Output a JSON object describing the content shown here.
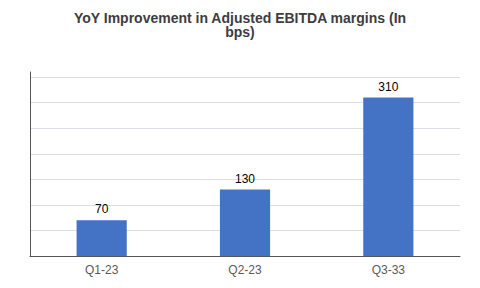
{
  "chart_data": {
    "type": "bar",
    "title": "YoY Improvement in Adjusted EBITDA margins (In\nbps)",
    "categories": [
      "Q1-23",
      "Q2-23",
      "Q3-33"
    ],
    "values": [
      70,
      130,
      310
    ],
    "color": "#4472C4",
    "ylim": [
      0,
      360
    ],
    "yticks": [
      0,
      50,
      100,
      150,
      200,
      250,
      300,
      350
    ],
    "grid": true,
    "data_labels": true,
    "tick_labels": "x"
  }
}
